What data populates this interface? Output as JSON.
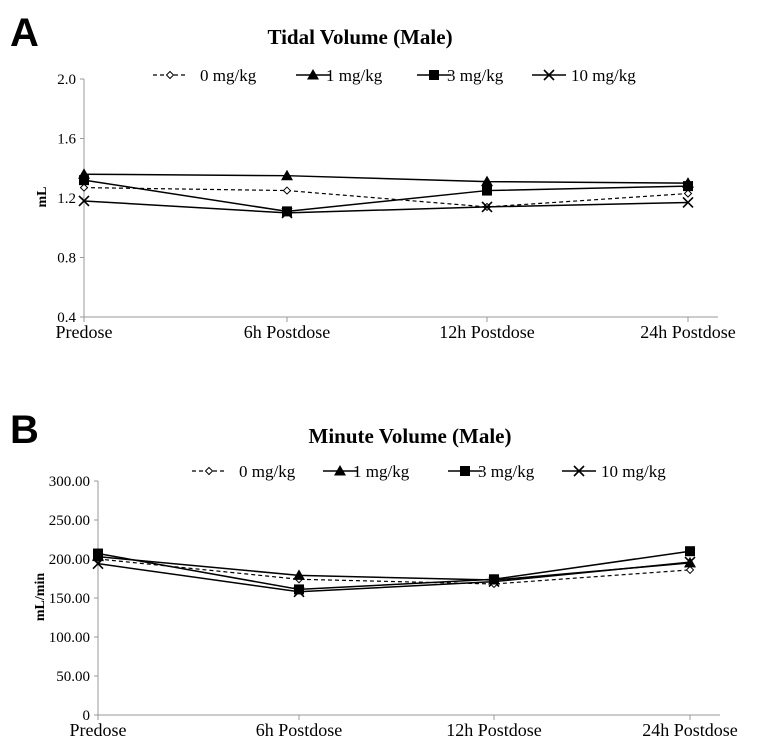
{
  "colors": {
    "line": "#000000",
    "axis": "#999999"
  },
  "chart_data": [
    {
      "panel": "A",
      "type": "line",
      "title": "Tidal Volume (Male)",
      "xlabel": "",
      "ylabel": "mL",
      "categories": [
        "Predose",
        "6h Postdose",
        "12h Postdose",
        "24h Postdose"
      ],
      "ylim": [
        0.4,
        2.0
      ],
      "yticks": [
        "0.4",
        "0.8",
        "1.2",
        "1.6",
        "2.0"
      ],
      "grid": false,
      "legend": "top",
      "series": [
        {
          "name": "0 mg/kg",
          "marker": "diamond-open",
          "dash": true,
          "values": [
            1.27,
            1.25,
            1.14,
            1.23
          ]
        },
        {
          "name": "1 mg/kg",
          "marker": "triangle",
          "dash": false,
          "values": [
            1.36,
            1.35,
            1.31,
            1.3
          ]
        },
        {
          "name": "3 mg/kg",
          "marker": "square",
          "dash": false,
          "values": [
            1.32,
            1.11,
            1.25,
            1.28
          ]
        },
        {
          "name": "10 mg/kg",
          "marker": "x",
          "dash": false,
          "values": [
            1.18,
            1.1,
            1.14,
            1.17
          ]
        }
      ]
    },
    {
      "panel": "B",
      "type": "line",
      "title": "Minute Volume (Male)",
      "xlabel": "",
      "ylabel": "mL/min",
      "categories": [
        "Predose",
        "6h Postdose",
        "12h Postdose",
        "24h Postdose"
      ],
      "ylim": [
        0,
        300
      ],
      "yticks": [
        "0",
        "50.00",
        "100.00",
        "150.00",
        "200.00",
        "250.00",
        "300.00"
      ],
      "grid": false,
      "legend": "top",
      "series": [
        {
          "name": "0 mg/kg",
          "marker": "diamond-open",
          "dash": true,
          "values": [
            200,
            174,
            168,
            186
          ]
        },
        {
          "name": "1 mg/kg",
          "marker": "triangle",
          "dash": false,
          "values": [
            203,
            179,
            173,
            195
          ]
        },
        {
          "name": "3 mg/kg",
          "marker": "square",
          "dash": false,
          "values": [
            207,
            161,
            174,
            210
          ]
        },
        {
          "name": "10 mg/kg",
          "marker": "x",
          "dash": false,
          "values": [
            194,
            158,
            171,
            196
          ]
        }
      ]
    }
  ]
}
